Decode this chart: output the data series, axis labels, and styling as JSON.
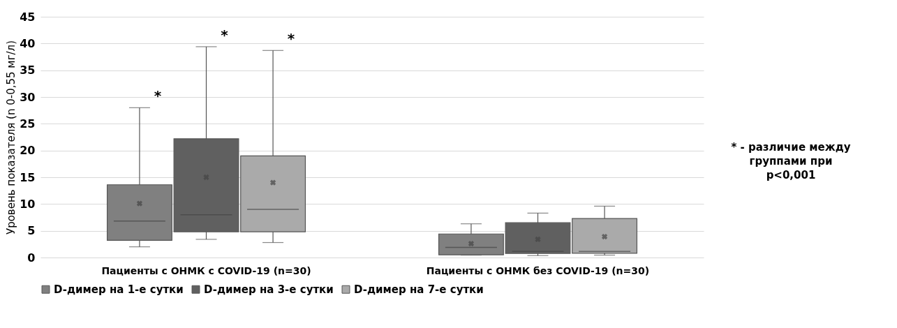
{
  "chart_data": {
    "type": "box",
    "ylabel": "Уровень показателя (n 0-0,55 мг/л)",
    "categories": [
      "Пациенты с ОНМК с COVID-19 (n=30)",
      "Пациенты с ОНМК без COVID-19 (n=30)"
    ],
    "series": [
      {
        "name": "D-димер на 1-е сутки",
        "color": "#808080",
        "boxes": [
          {
            "low": 2.0,
            "q1": 3.2,
            "median": 6.8,
            "q3": 13.6,
            "high": 28,
            "mean": 10.1
          },
          {
            "low": 0.45,
            "q1": 0.5,
            "median": 1.9,
            "q3": 4.4,
            "high": 6.3,
            "mean": 2.6
          }
        ]
      },
      {
        "name": "D-димер на 3-е сутки",
        "color": "#606060",
        "boxes": [
          {
            "low": 3.4,
            "q1": 4.8,
            "median": 8.0,
            "q3": 22.2,
            "high": 39.4,
            "mean": 15.0
          },
          {
            "low": 0.35,
            "q1": 0.75,
            "median": 1.15,
            "q3": 6.5,
            "high": 8.3,
            "mean": 3.4
          }
        ]
      },
      {
        "name": "D-димер на 7-е сутки",
        "color": "#aaaaaa",
        "boxes": [
          {
            "low": 2.8,
            "q1": 4.8,
            "median": 9.0,
            "q3": 19.0,
            "high": 38.7,
            "mean": 14.0
          },
          {
            "low": 0.45,
            "q1": 0.8,
            "median": 1.15,
            "q3": 7.3,
            "high": 9.6,
            "mean": 3.9
          }
        ]
      }
    ],
    "ylim": [
      0,
      45
    ],
    "yticks": [
      0,
      5,
      10,
      15,
      20,
      25,
      30,
      35,
      40,
      45
    ],
    "grid": "y",
    "legend": "bottom",
    "annotations": [
      "*",
      "*",
      "*",
      "* - различие между группами при p<0,001"
    ]
  }
}
